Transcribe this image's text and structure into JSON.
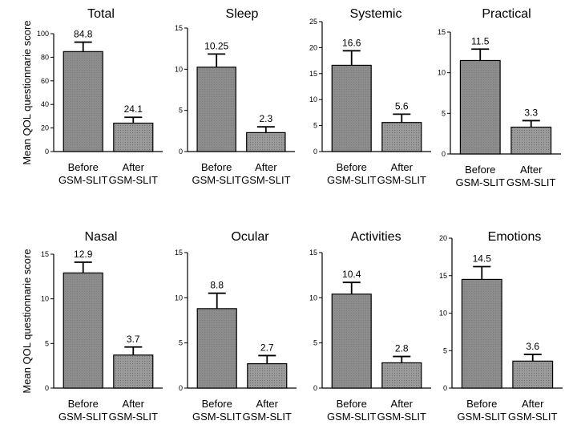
{
  "chart_data": [
    {
      "type": "bar",
      "title": "Total",
      "ylabel": "Mean QOL questionnarie score",
      "ylim": [
        0,
        100
      ],
      "yticks": [
        0,
        20,
        40,
        60,
        80,
        100
      ],
      "categories": [
        "Before\nGSM-SLIT",
        "After\nGSM-SLIT"
      ],
      "values": [
        84.8,
        24.1
      ],
      "value_labels": [
        "84.8",
        "24.1"
      ],
      "errors": [
        8.0,
        5.0
      ]
    },
    {
      "type": "bar",
      "title": "Sleep",
      "ylabel": "",
      "ylim": [
        0,
        15
      ],
      "yticks": [
        0,
        5,
        10,
        15
      ],
      "categories": [
        "Before\nGSM-SLIT",
        "After\nGSM-SLIT"
      ],
      "values": [
        10.25,
        2.3
      ],
      "value_labels": [
        "10.25",
        "2.3"
      ],
      "errors": [
        1.6,
        0.7
      ]
    },
    {
      "type": "bar",
      "title": "Systemic",
      "ylabel": "",
      "ylim": [
        0,
        25
      ],
      "yticks": [
        0,
        5,
        10,
        15,
        20,
        25
      ],
      "categories": [
        "Before\nGSM-SLIT",
        "After\nGSM-SLIT"
      ],
      "values": [
        16.6,
        5.6
      ],
      "value_labels": [
        "16.6",
        "5.6"
      ],
      "errors": [
        2.8,
        1.6
      ]
    },
    {
      "type": "bar",
      "title": "Practical",
      "ylabel": "",
      "ylim": [
        0,
        15
      ],
      "yticks": [
        0,
        5,
        10,
        15
      ],
      "categories": [
        "Before\nGSM-SLIT",
        "After\nGSM-SLIT"
      ],
      "values": [
        11.5,
        3.3
      ],
      "value_labels": [
        "11.5",
        "3.3"
      ],
      "errors": [
        1.4,
        0.8
      ]
    },
    {
      "type": "bar",
      "title": "Nasal",
      "ylabel": "Mean QOL questionnarie score",
      "ylim": [
        0,
        15
      ],
      "yticks": [
        0,
        5,
        10,
        15
      ],
      "categories": [
        "Before\nGSM-SLIT",
        "After\nGSM-SLIT"
      ],
      "values": [
        12.9,
        3.7
      ],
      "value_labels": [
        "12.9",
        "3.7"
      ],
      "errors": [
        1.2,
        0.9
      ]
    },
    {
      "type": "bar",
      "title": "Ocular",
      "ylabel": "",
      "ylim": [
        0,
        15
      ],
      "yticks": [
        0,
        5,
        10,
        15
      ],
      "categories": [
        "Before\nGSM-SLIT",
        "After\nGSM-SLIT"
      ],
      "values": [
        8.8,
        2.7
      ],
      "value_labels": [
        "8.8",
        "2.7"
      ],
      "errors": [
        1.7,
        0.9
      ]
    },
    {
      "type": "bar",
      "title": "Activities",
      "ylabel": "",
      "ylim": [
        0,
        15
      ],
      "yticks": [
        0,
        5,
        10,
        15
      ],
      "categories": [
        "Before\nGSM-SLIT",
        "After\nGSM-SLIT"
      ],
      "values": [
        10.4,
        2.8
      ],
      "value_labels": [
        "10.4",
        "2.8"
      ],
      "errors": [
        1.3,
        0.7
      ]
    },
    {
      "type": "bar",
      "title": "Emotions",
      "ylabel": "",
      "ylim": [
        0,
        20
      ],
      "yticks": [
        0,
        5,
        10,
        15,
        20
      ],
      "categories": [
        "Before\nGSM-SLIT",
        "After\nGSM-SLIT"
      ],
      "values": [
        14.5,
        3.6
      ],
      "value_labels": [
        "14.5",
        "3.6"
      ],
      "errors": [
        1.7,
        0.9
      ]
    }
  ],
  "colors": {
    "before_fill": "#8c8c8c",
    "after_fill": "#9a9a9a",
    "axis": "#000000"
  }
}
